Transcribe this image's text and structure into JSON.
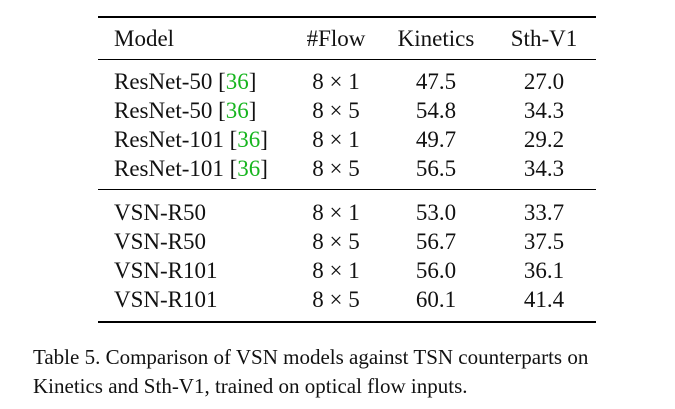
{
  "table": {
    "headers": {
      "model": "Model",
      "flow": "#Flow",
      "kinetics": "Kinetics",
      "sth": "Sth-V1"
    },
    "tsn_rows": [
      {
        "model": "ResNet-50 [",
        "cite": "36",
        "close": "]",
        "flow": "8 × 1",
        "kinetics": "47.5",
        "sth": "27.0"
      },
      {
        "model": "ResNet-50 [",
        "cite": "36",
        "close": "]",
        "flow": "8 × 5",
        "kinetics": "54.8",
        "sth": "34.3"
      },
      {
        "model": "ResNet-101 [",
        "cite": "36",
        "close": "]",
        "flow": "8 × 1",
        "kinetics": "49.7",
        "sth": "29.2"
      },
      {
        "model": "ResNet-101 [",
        "cite": "36",
        "close": "]",
        "flow": "8 × 5",
        "kinetics": "56.5",
        "sth": "34.3"
      }
    ],
    "vsn_rows": [
      {
        "model": "VSN-R50",
        "flow": "8 × 1",
        "kinetics": "53.0",
        "sth": "33.7"
      },
      {
        "model": "VSN-R50",
        "flow": "8 × 5",
        "kinetics": "56.7",
        "sth": "37.5"
      },
      {
        "model": "VSN-R101",
        "flow": "8 × 1",
        "kinetics": "56.0",
        "sth": "36.1"
      },
      {
        "model": "VSN-R101",
        "flow": "8 × 5",
        "kinetics": "60.1",
        "sth": "41.4"
      }
    ]
  },
  "caption": {
    "line1": "Table 5. Comparison of VSN models against TSN counterparts on",
    "line2": "Kinetics and Sth-V1, trained on optical flow inputs."
  },
  "colors": {
    "citation": "#17b51f",
    "text": "#111111",
    "rules": "#000000"
  }
}
